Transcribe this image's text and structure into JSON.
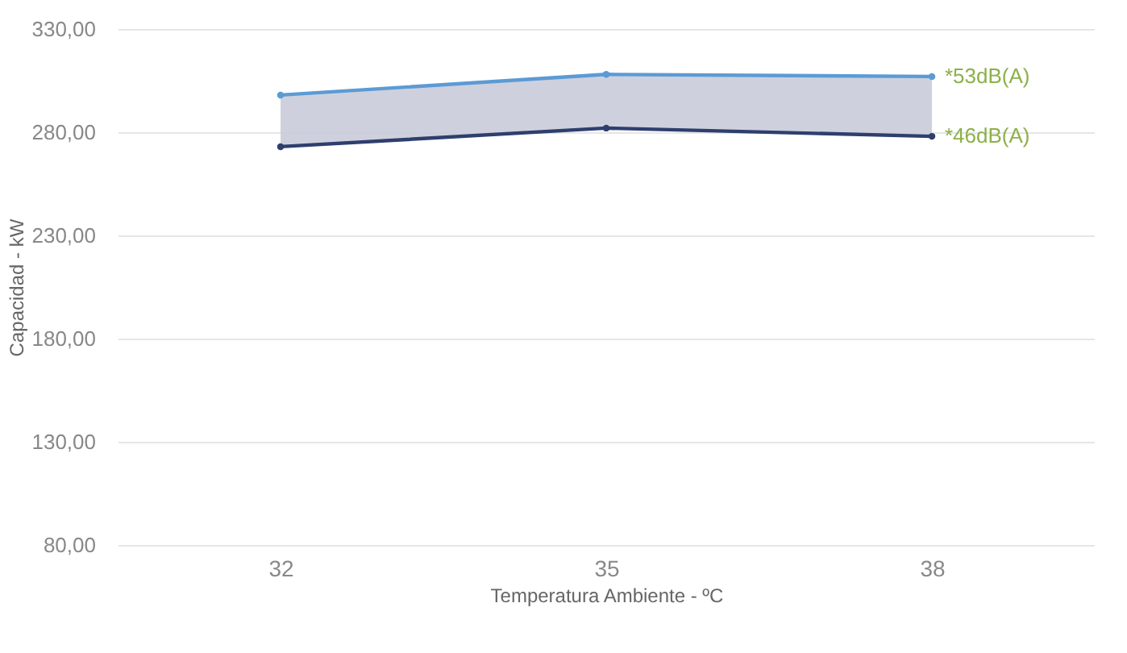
{
  "chart_data": {
    "type": "line",
    "xlabel": "Temperatura Ambiente - ºC",
    "ylabel": "Capacidad - kW",
    "categories": [
      "32",
      "35",
      "38"
    ],
    "series": [
      {
        "name": "*53dB(A)",
        "color": "#5b9bd5",
        "values": [
          298,
          308,
          307
        ],
        "lower": [
          273,
          282,
          278
        ],
        "upper": [
          298,
          308,
          307
        ]
      },
      {
        "name": "*46dB(A)",
        "color": "#2e3f6e",
        "values": [
          273,
          282,
          278
        ]
      }
    ],
    "ylim": [
      80,
      330
    ],
    "yticks": [
      {
        "value": 80,
        "label": "80,00"
      },
      {
        "value": 130,
        "label": "130,00"
      },
      {
        "value": 180,
        "label": "180,00"
      },
      {
        "value": 230,
        "label": "230,00"
      },
      {
        "value": 280,
        "label": "280,00"
      },
      {
        "value": 330,
        "label": "330,00"
      }
    ],
    "grid": "y",
    "marker": "circle",
    "line_style": "solid"
  }
}
